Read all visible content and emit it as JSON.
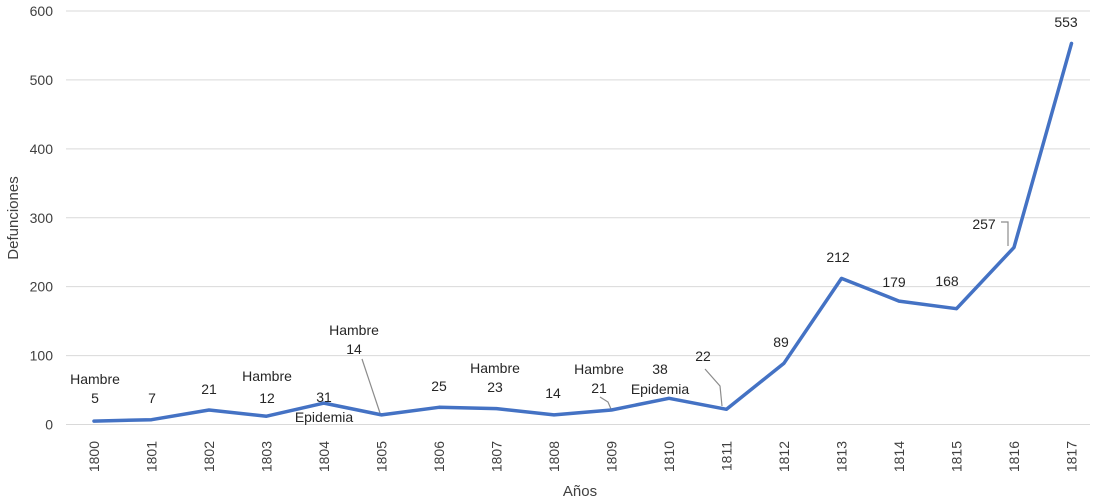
{
  "chart_data": {
    "type": "line",
    "xlabel": "Años",
    "ylabel": "Defunciones",
    "ylim": [
      0,
      600
    ],
    "yticks": [
      "0",
      "100",
      "200",
      "300",
      "400",
      "500",
      "600"
    ],
    "grid": true,
    "line_color": "#4472C4",
    "categories": [
      "1800",
      "1801",
      "1802",
      "1803",
      "1804",
      "1805",
      "1806",
      "1807",
      "1808",
      "1809",
      "1810",
      "1811",
      "1812",
      "1813",
      "1814",
      "1815",
      "1816",
      "1817"
    ],
    "series": [
      {
        "values": [
          5,
          7,
          21,
          12,
          31,
          14,
          25,
          23,
          14,
          21,
          38,
          22,
          89,
          212,
          179,
          168,
          257,
          553
        ]
      }
    ],
    "annotations": [
      {
        "year": "1800",
        "text": "Hambre"
      },
      {
        "year": "1803",
        "text": "Hambre"
      },
      {
        "year": "1804",
        "text": "Epidemia"
      },
      {
        "year": "1805",
        "text": "Hambre"
      },
      {
        "year": "1807",
        "text": "Hambre"
      },
      {
        "year": "1809",
        "text": "Hambre"
      },
      {
        "year": "1810",
        "text": "Epidemia"
      }
    ]
  }
}
